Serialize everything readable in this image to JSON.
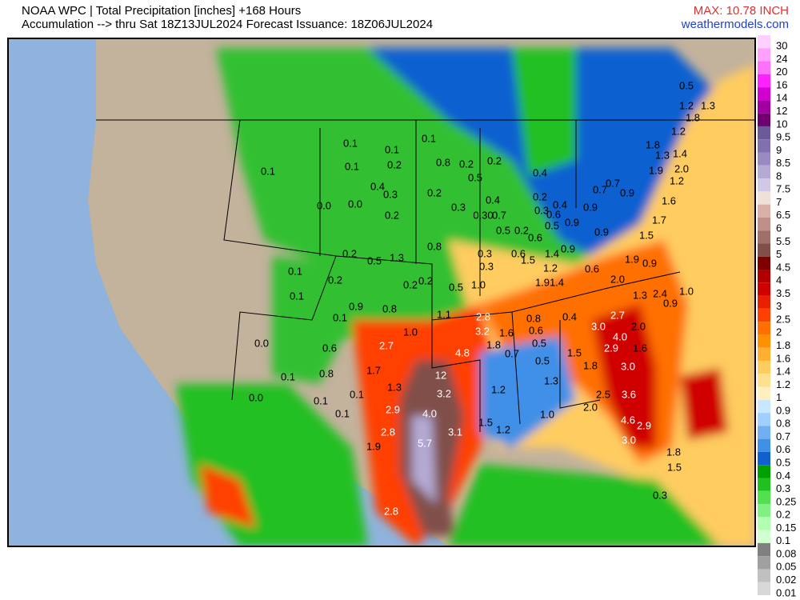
{
  "header": {
    "title_line1": "NOAA WPC | Total Precipitation [inches] +168 Hours",
    "title_line2": "Accumulation --> thru Sat 18Z13JUL2024   Forecast Issuance: 18Z06JUL2024",
    "max": "MAX: 10.78 INCH",
    "site": "weathermodels.com"
  },
  "legend": {
    "levels": [
      {
        "label": "30",
        "color": "#ffd0ff"
      },
      {
        "label": "24",
        "color": "#ffa0ff"
      },
      {
        "label": "20",
        "color": "#ff70ff"
      },
      {
        "label": "16",
        "color": "#ff20ff"
      },
      {
        "label": "14",
        "color": "#d000d0"
      },
      {
        "label": "12",
        "color": "#a000a0"
      },
      {
        "label": "10",
        "color": "#700070"
      },
      {
        "label": "9.5",
        "color": "#6a5a9a"
      },
      {
        "label": "9",
        "color": "#8070b0"
      },
      {
        "label": "8.5",
        "color": "#9a8ac4"
      },
      {
        "label": "8",
        "color": "#b4aad4"
      },
      {
        "label": "7.5",
        "color": "#d0c8e4"
      },
      {
        "label": "7",
        "color": "#f0e0d8"
      },
      {
        "label": "6.5",
        "color": "#d8b0a8"
      },
      {
        "label": "6",
        "color": "#c09088"
      },
      {
        "label": "5.5",
        "color": "#a07068"
      },
      {
        "label": "5",
        "color": "#805048"
      },
      {
        "label": "4.5",
        "color": "#800000"
      },
      {
        "label": "4",
        "color": "#b00000"
      },
      {
        "label": "3.5",
        "color": "#d00000"
      },
      {
        "label": "3",
        "color": "#e82000"
      },
      {
        "label": "2.5",
        "color": "#ff4000"
      },
      {
        "label": "2",
        "color": "#ff7000"
      },
      {
        "label": "1.8",
        "color": "#ff9000"
      },
      {
        "label": "1.6",
        "color": "#ffb030"
      },
      {
        "label": "1.4",
        "color": "#ffcc60"
      },
      {
        "label": "1.2",
        "color": "#ffe090"
      },
      {
        "label": "1",
        "color": "#fff0c0"
      },
      {
        "label": "0.9",
        "color": "#c8e8ff"
      },
      {
        "label": "0.8",
        "color": "#a0d0ff"
      },
      {
        "label": "0.7",
        "color": "#70b0f0"
      },
      {
        "label": "0.6",
        "color": "#4090e8"
      },
      {
        "label": "0.5",
        "color": "#1060d0"
      },
      {
        "label": "0.4",
        "color": "#00a000"
      },
      {
        "label": "0.3",
        "color": "#20c020"
      },
      {
        "label": "0.25",
        "color": "#50e050"
      },
      {
        "label": "0.2",
        "color": "#80f080"
      },
      {
        "label": "0.15",
        "color": "#b0ffb0"
      },
      {
        "label": "0.1",
        "color": "#d0ffd0"
      },
      {
        "label": "0.08",
        "color": "#808080"
      },
      {
        "label": "0.05",
        "color": "#a0a0a0"
      },
      {
        "label": "0.02",
        "color": "#c0c0c0"
      },
      {
        "label": "0.01",
        "color": "#d8d8d8"
      }
    ]
  },
  "map_labels": [
    "0.5",
    "1.2",
    "1.3",
    "1.8",
    "1.2",
    "1.8",
    "1.3",
    "1.4",
    "1.9",
    "2.0",
    "1.2",
    "0.7",
    "0.7",
    "0.9",
    "1.6",
    "0.9",
    "1.7",
    "0.9",
    "1.5",
    "1.9",
    "0.9",
    "0.6",
    "2.0",
    "2.4",
    "1.0",
    "1.3",
    "0.9",
    "2.7",
    "2.0",
    "3.0",
    "4.0",
    "2.9",
    "1.6",
    "3.0",
    "1.8",
    "1.5",
    "3.6",
    "2.5",
    "2.0",
    "4.6",
    "2.9",
    "3.0",
    "1.8",
    "1.5",
    "0.3",
    "0.1",
    "0.1",
    "0.1",
    "0.2",
    "0.1",
    "0.8",
    "0.2",
    "0.2",
    "0.5",
    "0.4",
    "0.4",
    "0.2",
    "0.4",
    "0.3",
    "0.6",
    "0.5",
    "0.9",
    "0.30",
    "0.7",
    "0.3",
    "0.2",
    "0.4",
    "0.3",
    "0.2",
    "0.0",
    "0.0",
    "0.1",
    "0.5",
    "0.2",
    "0.6",
    "1.4",
    "0.9",
    "1.5",
    "1.2",
    "0.2",
    "0.5",
    "1.3",
    "0.8",
    "0.3",
    "0.3",
    "0.6",
    "1.9",
    "1.4",
    "1.0",
    "0.5",
    "0.2",
    "0.2",
    "0.2",
    "0.1",
    "0.1",
    "0.9",
    "0.8",
    "1.1",
    "2.8",
    "0.8",
    "0.4",
    "0.1",
    "3.2",
    "1.6",
    "0.6",
    "1.0",
    "2.7",
    "0.5",
    "1.8",
    "0.7",
    "4.8",
    "0.6",
    "0.0",
    "1.7",
    "0.8",
    "0.1",
    "0.5",
    "0.0",
    "1.3",
    "3.2",
    "1.2",
    "1.3",
    "0.1",
    "0.1",
    "0.1",
    "2.9",
    "4.0",
    "1.0",
    "2.8",
    "3.1",
    "1.5",
    "1.2",
    "5.7",
    "1.9",
    "2.8",
    "12"
  ]
}
